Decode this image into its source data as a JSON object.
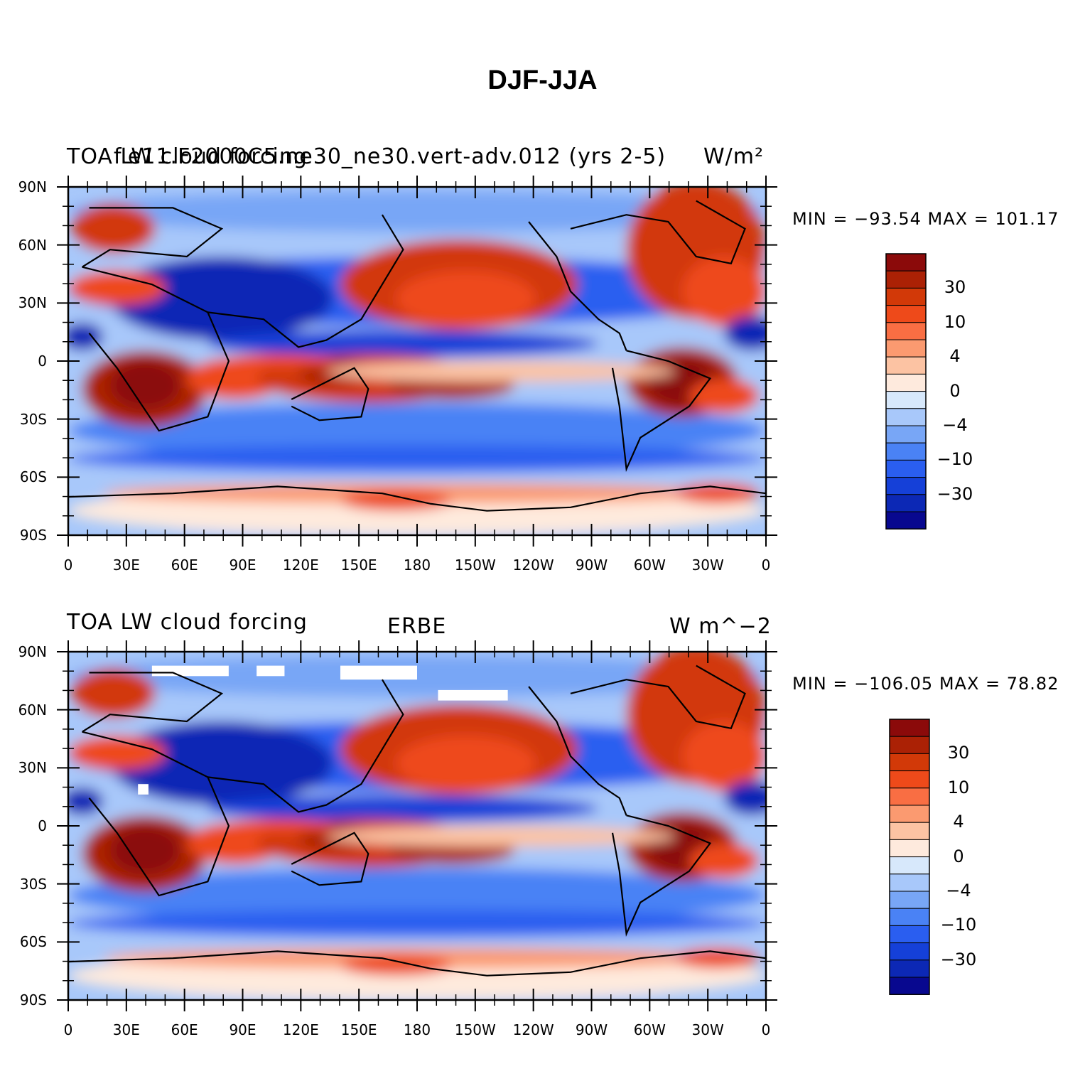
{
  "title": "DJF-JJA",
  "panels": [
    {
      "left_title": "TOA LW cloud forcing",
      "overlay_title": "f.e11.F2000C5.ne30_ne30.vert-adv.012 (yrs 2-5)",
      "center_title": "",
      "units": "W/m²",
      "min_max": "MIN = −93.54  MAX = 101.17",
      "colorbar_labels": [
        "30",
        "10",
        "4",
        "0",
        "−4",
        "−10",
        "−30"
      ]
    },
    {
      "left_title": "TOA LW cloud forcing",
      "overlay_title": "",
      "center_title": "ERBE",
      "units": "W m^−2",
      "min_max": "MIN = −106.05  MAX =  78.82",
      "colorbar_labels": [
        "30",
        "10",
        "4",
        "0",
        "−4",
        "−10",
        "−30"
      ]
    }
  ],
  "lat_labels": [
    "90N",
    "60N",
    "30N",
    "0",
    "30S",
    "60S",
    "90S"
  ],
  "lon_labels": [
    "0",
    "30E",
    "60E",
    "90E",
    "120E",
    "150E",
    "180",
    "150W",
    "120W",
    "90W",
    "60W",
    "30W",
    "0"
  ],
  "colorbar_colors": [
    "#08088f",
    "#0c28b5",
    "#1540d8",
    "#2a5ef0",
    "#4a82f5",
    "#78a6f6",
    "#a8c8fa",
    "#d7e8fb",
    "#feeadd",
    "#fcc3a3",
    "#fb9a70",
    "#f96e43",
    "#ee4a1a",
    "#d23908",
    "#ab2105",
    "#8b0a0a"
  ]
}
